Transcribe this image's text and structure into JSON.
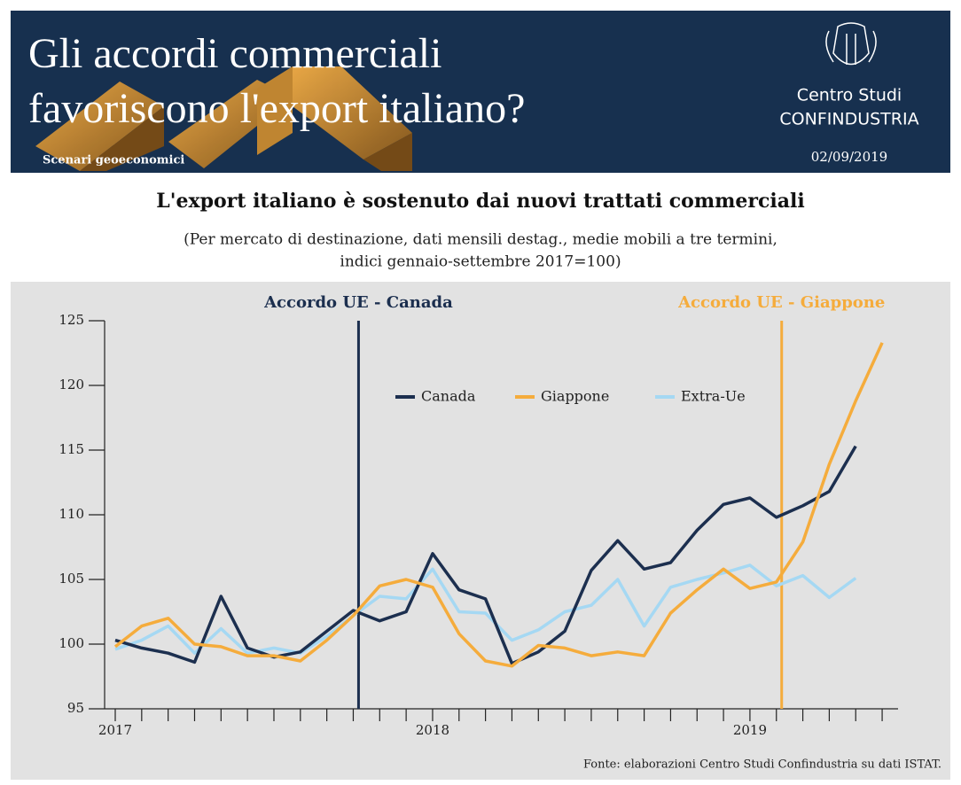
{
  "header": {
    "title_lines": [
      "Gli accordi commerciali",
      "favoriscono l'export italiano?"
    ],
    "tag": "Scenari geoeconomici",
    "logo_lines": [
      "Centro Studi",
      "CONFINDUSTRIA"
    ],
    "date": "02/09/2019"
  },
  "chart_data": {
    "type": "line",
    "title": "L'export italiano è sostenuto dai nuovi trattati commerciali",
    "subtitle_lines": [
      "(Per mercato di destinazione, dati mensili destag., medie mobili a tre termini,",
      "indici gennaio-settembre 2017=100)"
    ],
    "categories": [
      "2017",
      null,
      null,
      null,
      null,
      null,
      null,
      null,
      null,
      null,
      null,
      null,
      "2018",
      null,
      null,
      null,
      null,
      null,
      null,
      null,
      null,
      null,
      null,
      null,
      "2019",
      null,
      null,
      null,
      null,
      null
    ],
    "series": [
      {
        "name": "Canada",
        "color": "#1c2f4f",
        "values": [
          100.3,
          99.7,
          99.3,
          98.6,
          103.7,
          99.7,
          99.0,
          99.4,
          101.0,
          102.6,
          101.8,
          102.5,
          107.0,
          104.2,
          103.5,
          98.5,
          99.4,
          101.0,
          105.7,
          108.0,
          105.8,
          106.3,
          108.8,
          110.8,
          111.3,
          109.8,
          110.7,
          111.8,
          115.3,
          null
        ]
      },
      {
        "name": "Giappone",
        "color": "#f5ac3c",
        "values": [
          99.8,
          101.4,
          102.0,
          100.0,
          99.8,
          99.1,
          99.1,
          98.7,
          100.3,
          102.2,
          104.5,
          105.0,
          104.4,
          100.8,
          98.7,
          98.3,
          99.9,
          99.7,
          99.1,
          99.4,
          99.1,
          102.4,
          104.2,
          105.8,
          104.3,
          104.8,
          107.9,
          113.9,
          118.8,
          123.3
        ]
      },
      {
        "name": "Extra-Ue",
        "color": "#a5d8f3",
        "values": [
          99.6,
          100.3,
          101.4,
          99.3,
          101.2,
          99.3,
          99.7,
          99.3,
          100.6,
          102.2,
          103.7,
          103.5,
          105.8,
          102.5,
          102.4,
          100.3,
          101.1,
          102.5,
          103.0,
          105.0,
          101.4,
          104.4,
          105.0,
          105.5,
          106.1,
          104.5,
          105.3,
          103.6,
          105.1,
          null
        ]
      }
    ],
    "annotations": [
      {
        "label": "Accordo UE - Canada",
        "x": 9.2,
        "color": "#1c2f4f"
      },
      {
        "label": "Accordo UE - Giappone",
        "x": 25.2,
        "color": "#f5ac3c"
      }
    ],
    "ylim": [
      95,
      125
    ],
    "yticks": [
      95,
      100,
      105,
      110,
      115,
      120,
      125
    ],
    "legend": "top",
    "source": "Fonte: elaborazioni Centro Studi Confindustria su dati ISTAT."
  }
}
